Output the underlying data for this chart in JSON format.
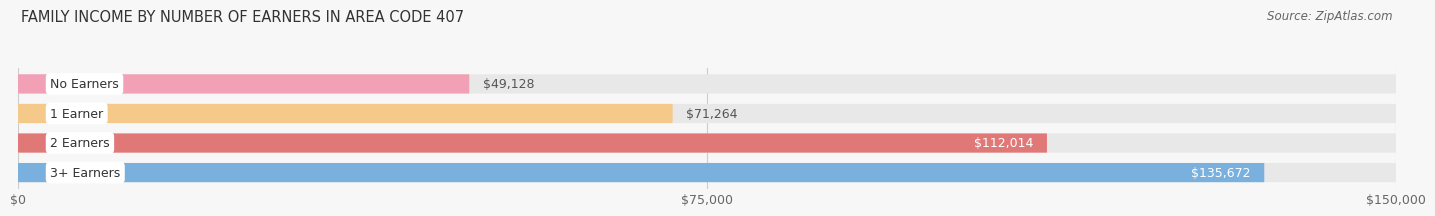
{
  "title": "FAMILY INCOME BY NUMBER OF EARNERS IN AREA CODE 407",
  "source": "Source: ZipAtlas.com",
  "categories": [
    "No Earners",
    "1 Earner",
    "2 Earners",
    "3+ Earners"
  ],
  "values": [
    49128,
    71264,
    112014,
    135672
  ],
  "bar_colors": [
    "#f2a0b5",
    "#f5c98a",
    "#e07878",
    "#7ab0de"
  ],
  "bar_label_colors": [
    "#555555",
    "#555555",
    "#ffffff",
    "#ffffff"
  ],
  "xlim": [
    0,
    150000
  ],
  "xticks": [
    0,
    75000,
    150000
  ],
  "xtick_labels": [
    "$0",
    "$75,000",
    "$150,000"
  ],
  "background_color": "#f7f7f7",
  "bar_bg_color": "#e8e8e8",
  "title_fontsize": 10.5,
  "source_fontsize": 8.5,
  "label_fontsize": 9,
  "tick_fontsize": 9
}
